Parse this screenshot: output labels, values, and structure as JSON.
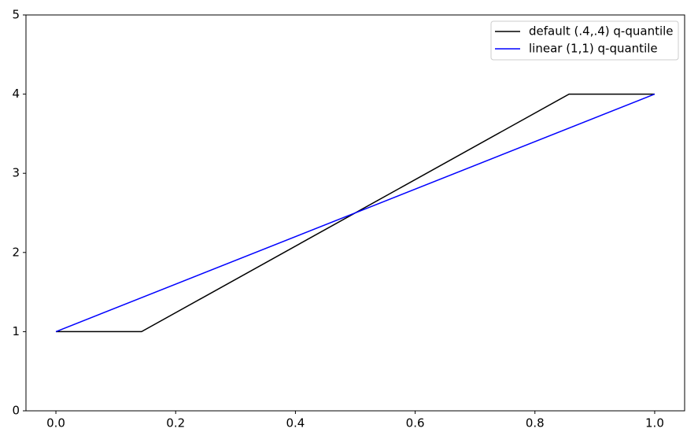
{
  "chart_data": {
    "type": "line",
    "series": [
      {
        "name": "default (.4,.4) q-quantile",
        "color": "#000000",
        "x": [
          0,
          0.143,
          0.857,
          1
        ],
        "values": [
          1,
          1,
          4,
          4
        ]
      },
      {
        "name": "linear (1,1) q-quantile",
        "color": "#0000ff",
        "x": [
          0,
          1
        ],
        "values": [
          1,
          4
        ]
      }
    ],
    "xlim": [
      -0.05,
      1.05
    ],
    "xticks": [
      {
        "value": 0,
        "label": "0.0"
      },
      0.2,
      0.4,
      0.6,
      0.8,
      {
        "value": 1,
        "label": "1.0"
      }
    ],
    "ylim": [
      0,
      5
    ],
    "yticks": [
      0,
      1,
      2,
      3,
      4,
      5
    ],
    "grid": false,
    "legend": "upper right"
  }
}
